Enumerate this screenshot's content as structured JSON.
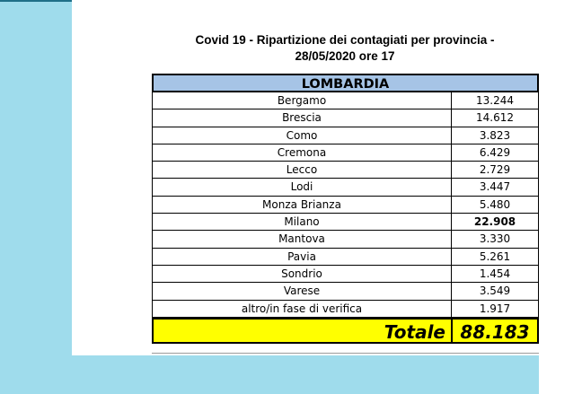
{
  "title_line1": "Covid 19 - Ripartizione dei contagiati per provincia -",
  "title_line2": "28/05/2020 ore 17",
  "region": "LOMBARDIA",
  "rows": [
    {
      "province": "Bergamo",
      "value": "13.244"
    },
    {
      "province": "Brescia",
      "value": "14.612"
    },
    {
      "province": "Como",
      "value": "3.823"
    },
    {
      "province": "Cremona",
      "value": "6.429"
    },
    {
      "province": "Lecco",
      "value": "2.729"
    },
    {
      "province": "Lodi",
      "value": "3.447"
    },
    {
      "province": "Monza Brianza",
      "value": "5.480"
    },
    {
      "province": "Milano",
      "value": "22.908"
    },
    {
      "province": "Mantova",
      "value": "3.330"
    },
    {
      "province": "Pavia",
      "value": "5.261"
    },
    {
      "province": "Sondrio",
      "value": "1.454"
    },
    {
      "province": "Varese",
      "value": "3.549"
    },
    {
      "province": "altro/in fase di verifica",
      "value": "1.917"
    }
  ],
  "total_label": "Totale",
  "total_value": "88.183",
  "colors": {
    "background_accent": "#9fdcec",
    "region_header": "#a6c4e6",
    "total_highlight": "#ffff00"
  }
}
